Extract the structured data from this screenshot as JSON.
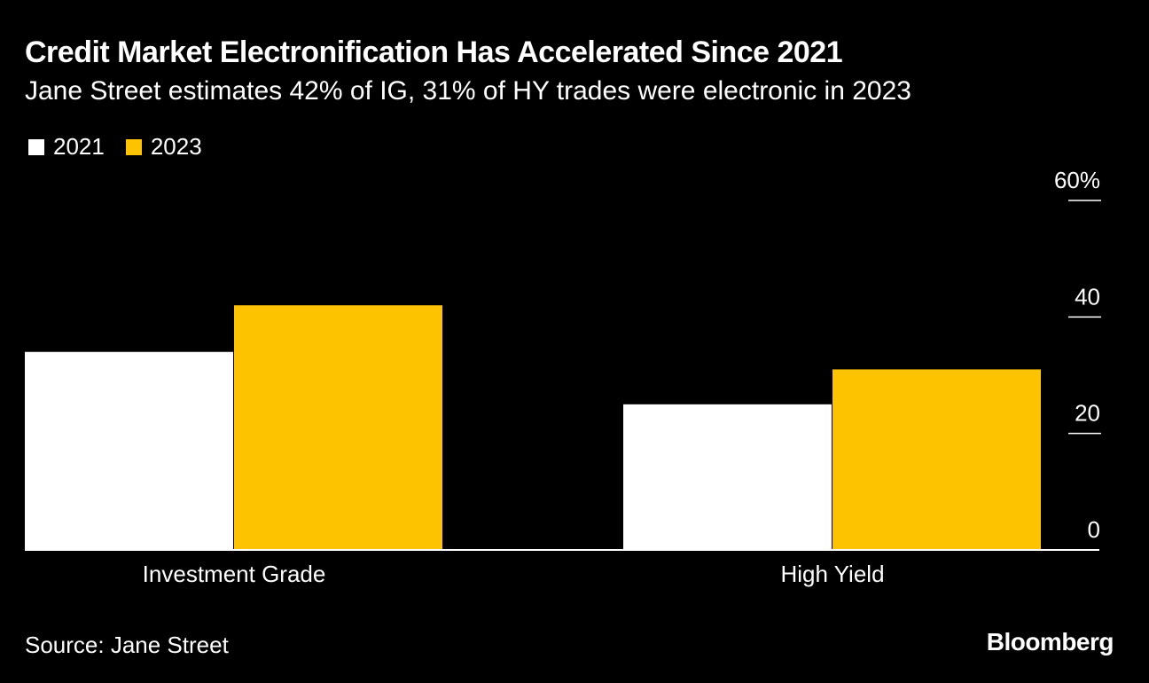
{
  "title": "Credit Market Electronification Has Accelerated Since 2021",
  "subtitle": "Jane Street estimates 42% of IG, 31% of HY trades were electronic in 2023",
  "source": "Source: Jane Street",
  "logo": "Bloomberg",
  "colors": {
    "background": "#000000",
    "series_2021": "#ffffff",
    "series_2023": "#fdc300"
  },
  "chart_data": {
    "type": "bar",
    "categories": [
      "Investment Grade",
      "High Yield"
    ],
    "series": [
      {
        "name": "2021",
        "values": [
          34,
          25
        ],
        "color": "#ffffff"
      },
      {
        "name": "2023",
        "values": [
          42,
          31
        ],
        "color": "#fdc300"
      }
    ],
    "ylim": [
      0,
      60
    ],
    "yticks": [
      0,
      20,
      40,
      60
    ],
    "ytick_labels": [
      "0",
      "20",
      "40",
      "60%"
    ],
    "y_axis_side": "right",
    "legend_position": "top-left",
    "grid": false
  }
}
